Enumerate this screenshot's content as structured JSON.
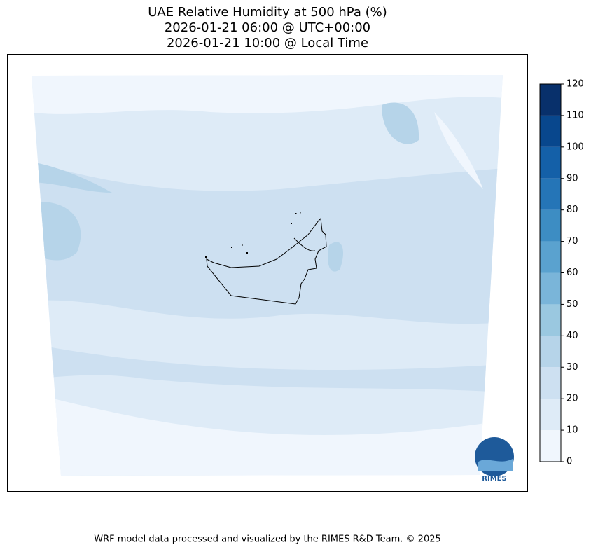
{
  "header": {
    "title": [
      "UAE Relative Humidity at 500 hPa (%)",
      "2026-01-21 06:00 @ UTC+00:00",
      "2026-01-21 10:00 @ Local Time"
    ]
  },
  "colorbar": {
    "ticks": [
      0,
      10,
      20,
      30,
      40,
      50,
      60,
      70,
      80,
      90,
      100,
      110,
      120
    ],
    "colors": [
      "#f0f6fd",
      "#deebf7",
      "#cde0f1",
      "#b6d4e9",
      "#9ac8e0",
      "#7ab5d9",
      "#5aa2cf",
      "#3d8dc3",
      "#2575b7",
      "#1460a8",
      "#08478d",
      "#08306b"
    ]
  },
  "logo": {
    "text": "RIMES"
  },
  "footer": {
    "text": "WRF model data processed and visualized by the RIMES R&D Team. © 2025"
  }
}
